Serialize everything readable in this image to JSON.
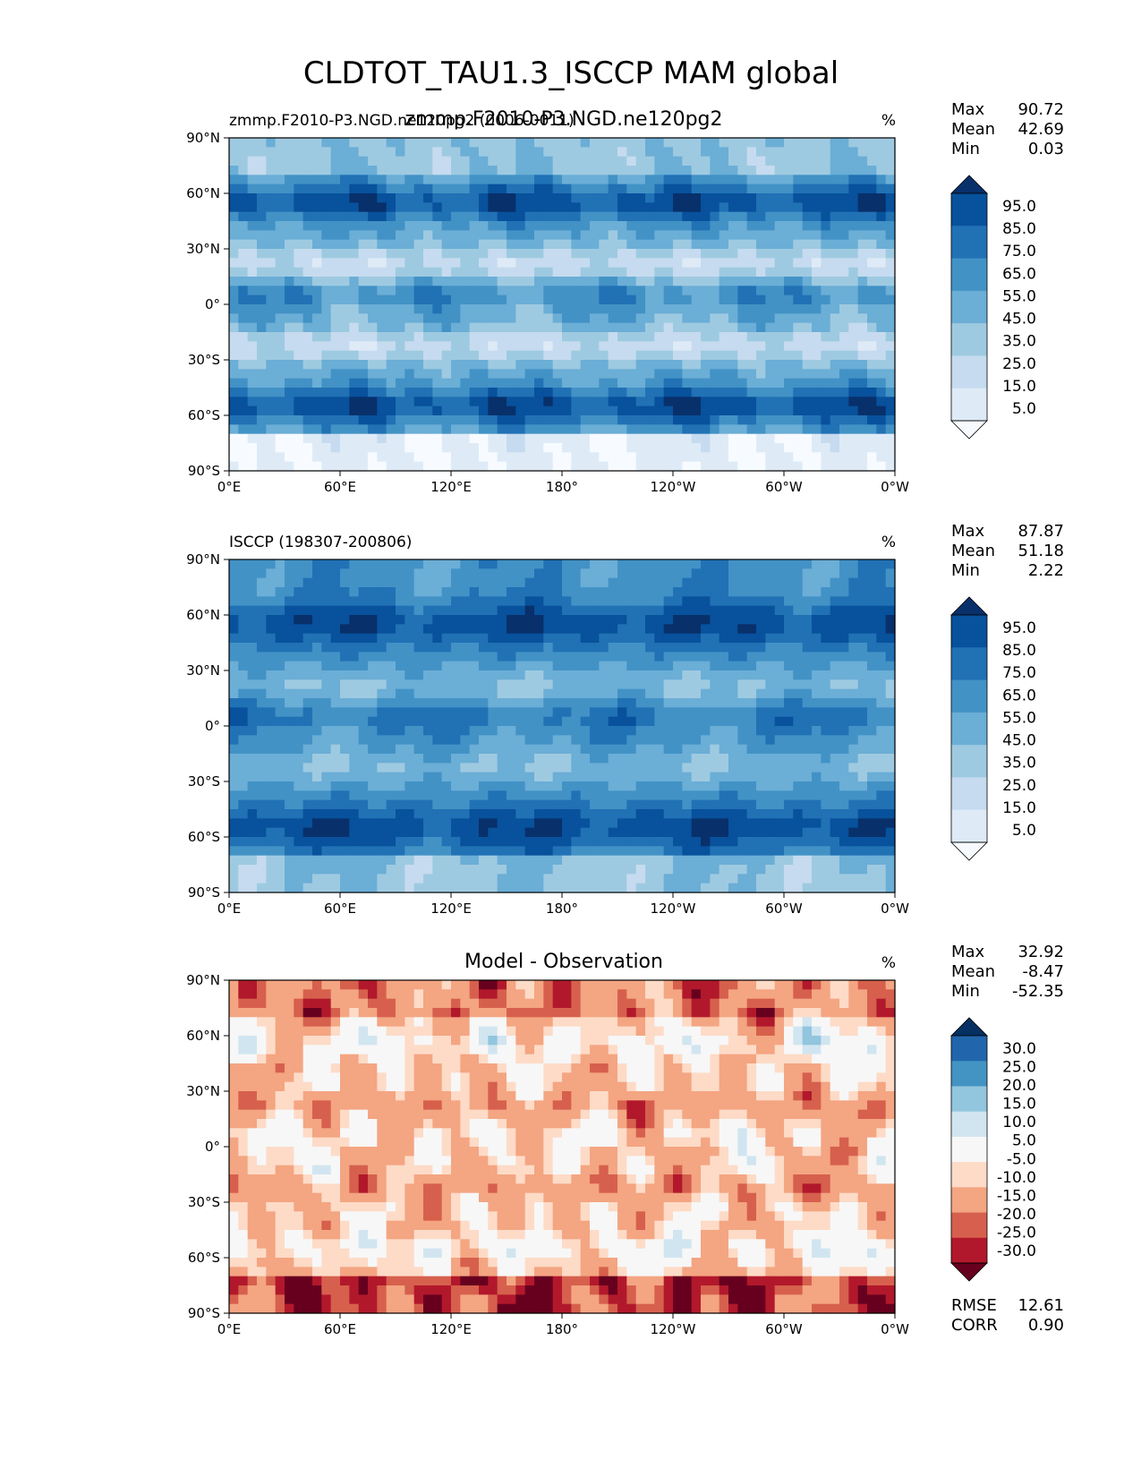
{
  "title": "CLDTOT_TAU1.3_ISCCP MAM global",
  "colors": {
    "blues": [
      "#f7fbff",
      "#deebf7",
      "#c6dbef",
      "#9ecae1",
      "#6baed6",
      "#4292c6",
      "#2171b5",
      "#08519c",
      "#08306b"
    ],
    "diverging": [
      "#67001f",
      "#b2182b",
      "#d6604d",
      "#f4a582",
      "#fddbc7",
      "#f7f7f7",
      "#d1e5f0",
      "#92c5de",
      "#4393c3",
      "#2166ac",
      "#053061"
    ]
  },
  "chart_data": [
    {
      "type": "heatmap",
      "title_left": "zmmp.F2010-P3.NGD.ne120pg2 (0006-0011)",
      "title_center": "zmmp.F2010-P3.NGD.ne120pg2",
      "title_right": "%",
      "x_ticks": [
        "0°E",
        "60°E",
        "120°E",
        "180°",
        "120°W",
        "60°W",
        "0°W"
      ],
      "y_ticks": [
        "90°N",
        "60°N",
        "30°N",
        "0°",
        "30°S",
        "60°S",
        "90°S"
      ],
      "stats": [
        {
          "label": "Max",
          "value": "90.72"
        },
        {
          "label": "Mean",
          "value": "42.69"
        },
        {
          "label": "Min",
          "value": "0.03"
        }
      ],
      "colorbar_ticks": [
        "95.0",
        "85.0",
        "75.0",
        "65.0",
        "55.0",
        "45.0",
        "35.0",
        "25.0",
        "15.0",
        "5.0"
      ]
    },
    {
      "type": "heatmap",
      "title_left": "ISCCP (198307-200806)",
      "title_center": "",
      "title_right": "%",
      "x_ticks": [
        "0°E",
        "60°E",
        "120°E",
        "180°",
        "120°W",
        "60°W",
        "0°W"
      ],
      "y_ticks": [
        "90°N",
        "60°N",
        "30°N",
        "0°",
        "30°S",
        "60°S",
        "90°S"
      ],
      "stats": [
        {
          "label": "Max",
          "value": "87.87"
        },
        {
          "label": "Mean",
          "value": "51.18"
        },
        {
          "label": "Min",
          "value": "2.22"
        }
      ],
      "colorbar_ticks": [
        "95.0",
        "85.0",
        "75.0",
        "65.0",
        "55.0",
        "45.0",
        "35.0",
        "25.0",
        "15.0",
        "5.0"
      ]
    },
    {
      "type": "heatmap",
      "title_left": "",
      "title_center": "Model - Observation",
      "title_right": "%",
      "x_ticks": [
        "0°E",
        "60°E",
        "120°E",
        "180°",
        "120°W",
        "60°W",
        "0°W"
      ],
      "y_ticks": [
        "90°N",
        "60°N",
        "30°N",
        "0°",
        "30°S",
        "60°S",
        "90°S"
      ],
      "stats": [
        {
          "label": "Max",
          "value": "32.92"
        },
        {
          "label": "Mean",
          "value": "-8.47"
        },
        {
          "label": "Min",
          "value": "-52.35"
        }
      ],
      "colorbar_ticks": [
        "30.0",
        "25.0",
        "20.0",
        "15.0",
        "10.0",
        "5.0",
        "-5.0",
        "-10.0",
        "-15.0",
        "-20.0",
        "-25.0",
        "-30.0"
      ],
      "extra_stats": [
        {
          "label": "RMSE",
          "value": "12.61"
        },
        {
          "label": "CORR",
          "value": "0.90"
        }
      ]
    }
  ]
}
